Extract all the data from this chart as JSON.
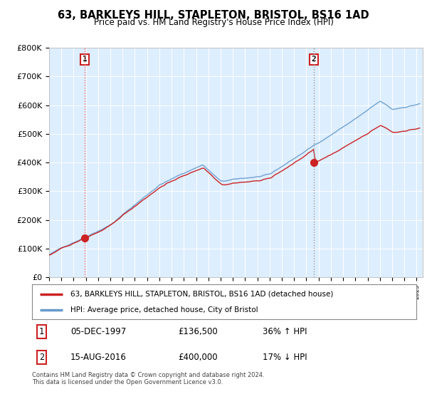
{
  "title": "63, BARKLEYS HILL, STAPLETON, BRISTOL, BS16 1AD",
  "subtitle": "Price paid vs. HM Land Registry's House Price Index (HPI)",
  "legend_line1": "63, BARKLEYS HILL, STAPLETON, BRISTOL, BS16 1AD (detached house)",
  "legend_line2": "HPI: Average price, detached house, City of Bristol",
  "annotation1_date": "05-DEC-1997",
  "annotation1_price": "£136,500",
  "annotation1_hpi": "36% ↑ HPI",
  "annotation1_year": 1997.92,
  "annotation1_value": 136500,
  "annotation2_date": "15-AUG-2016",
  "annotation2_price": "£400,000",
  "annotation2_hpi": "17% ↓ HPI",
  "annotation2_year": 2016.62,
  "annotation2_value": 400000,
  "footer": "Contains HM Land Registry data © Crown copyright and database right 2024.\nThis data is licensed under the Open Government Licence v3.0.",
  "hpi_color": "#6699cc",
  "price_color": "#cc2222",
  "bg_color": "#ddeeff",
  "plot_bg": "#ddeeff",
  "white": "#ffffff",
  "ylim_max": 800000,
  "xmin": 1995,
  "xmax": 2025.5
}
